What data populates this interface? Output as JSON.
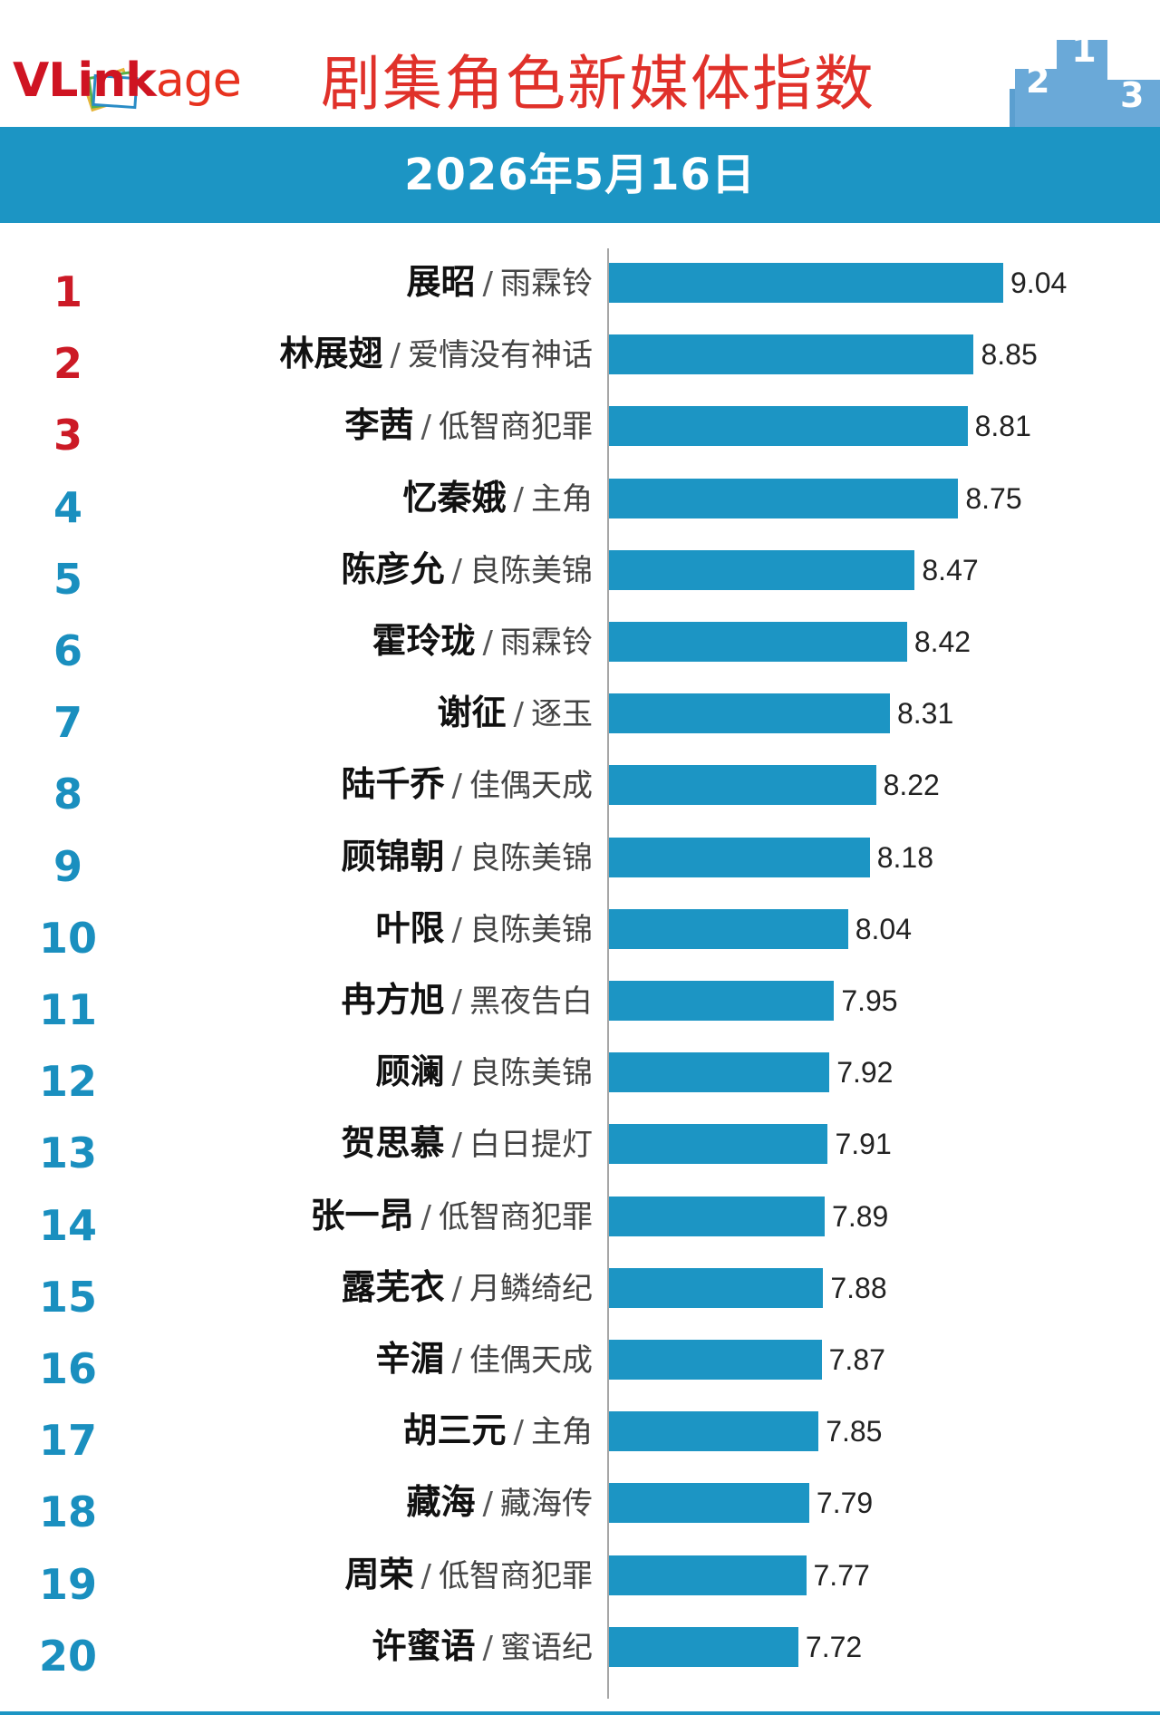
{
  "header": {
    "logo_text": "VLinkage",
    "logo_part1": "VL",
    "logo_part2": "ink",
    "logo_part3": "age",
    "title": "剧集角色新媒体指数",
    "date": "2026年5月16日"
  },
  "colors": {
    "accent": "#1c95c4",
    "title": "#e0312a",
    "top3_rank": "#cc1a26",
    "rank": "#1a8fbf"
  },
  "chart_data": {
    "type": "bar",
    "orientation": "horizontal",
    "title": "剧集角色新媒体指数",
    "subtitle": "2026年5月16日",
    "xlim": [
      6.5,
      9.2
    ],
    "grid": false,
    "ranks": [
      "1",
      "2",
      "3",
      "4",
      "5",
      "6",
      "7",
      "8",
      "9",
      "10",
      "11",
      "12",
      "13",
      "14",
      "15",
      "16",
      "17",
      "18",
      "19",
      "20"
    ],
    "names": [
      "展昭",
      "林展翅",
      "李茜",
      "忆秦娥",
      "陈彦允",
      "霍玲珑",
      "谢征",
      "陆千乔",
      "顾锦朝",
      "叶限",
      "冉方旭",
      "顾澜",
      "贺思慕",
      "张一昂",
      "露芜衣",
      "辛湄",
      "胡三元",
      "藏海",
      "周荣",
      "许蜜语"
    ],
    "dramas": [
      "雨霖铃",
      "爱情没有神话",
      "低智商犯罪",
      "主角",
      "良陈美锦",
      "雨霖铃",
      "逐玉",
      "佳偶天成",
      "良陈美锦",
      "良陈美锦",
      "黑夜告白",
      "良陈美锦",
      "白日提灯",
      "低智商犯罪",
      "月鳞绮纪",
      "佳偶天成",
      "主角",
      "藏海传",
      "低智商犯罪",
      "蜜语纪"
    ],
    "value_labels": [
      "9.04",
      "8.85",
      "8.81",
      "8.75",
      "8.47",
      "8.42",
      "8.31",
      "8.22",
      "8.18",
      "8.04",
      "7.95",
      "7.92",
      "7.91",
      "7.89",
      "7.88",
      "7.87",
      "7.85",
      "7.79",
      "7.77",
      "7.72"
    ],
    "values": [
      9.04,
      8.85,
      8.81,
      8.75,
      8.47,
      8.42,
      8.31,
      8.22,
      8.18,
      8.04,
      7.95,
      7.92,
      7.91,
      7.89,
      7.88,
      7.87,
      7.85,
      7.79,
      7.77,
      7.72
    ],
    "separator": "/"
  }
}
